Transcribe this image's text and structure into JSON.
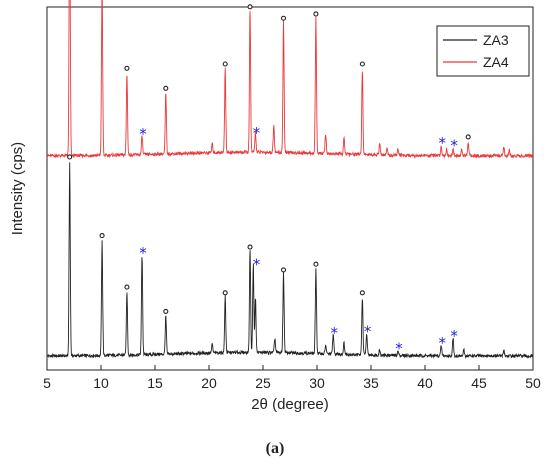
{
  "chart_data": {
    "type": "line",
    "xlabel": "2θ (degree)",
    "ylabel": "Intensity (cps)",
    "xlim": [
      5,
      50
    ],
    "xticks": [
      5,
      10,
      15,
      20,
      25,
      30,
      35,
      40,
      45,
      50
    ],
    "y_ticks_shown": false,
    "legend_position": "top-right",
    "series": [
      {
        "name": "ZA3",
        "color": "#222222",
        "baseline": 0,
        "peaks": [
          [
            7.1,
            135
          ],
          [
            10.1,
            80
          ],
          [
            12.4,
            44
          ],
          [
            13.8,
            70
          ],
          [
            16.0,
            27
          ],
          [
            20.3,
            6
          ],
          [
            21.5,
            40
          ],
          [
            23.8,
            72
          ],
          [
            24.1,
            62
          ],
          [
            24.3,
            38
          ],
          [
            26.1,
            10
          ],
          [
            26.9,
            56
          ],
          [
            29.9,
            60
          ],
          [
            30.8,
            6
          ],
          [
            31.5,
            14
          ],
          [
            32.5,
            8
          ],
          [
            34.2,
            40
          ],
          [
            34.6,
            15
          ],
          [
            35.8,
            4
          ],
          [
            37.5,
            3
          ],
          [
            41.5,
            7
          ],
          [
            42.6,
            12
          ],
          [
            43.6,
            4
          ],
          [
            47.3,
            4
          ]
        ]
      },
      {
        "name": "ZA4",
        "color": "#e83a3a",
        "baseline": 140,
        "peaks": [
          [
            7.1,
            185
          ],
          [
            10.1,
            120
          ],
          [
            12.4,
            57
          ],
          [
            13.8,
            13
          ],
          [
            16.0,
            43
          ],
          [
            20.3,
            6
          ],
          [
            21.5,
            60
          ],
          [
            23.8,
            100
          ],
          [
            24.3,
            14
          ],
          [
            26.0,
            20
          ],
          [
            26.9,
            92
          ],
          [
            29.9,
            95
          ],
          [
            30.8,
            14
          ],
          [
            32.5,
            12
          ],
          [
            34.2,
            60
          ],
          [
            35.8,
            8
          ],
          [
            36.5,
            5
          ],
          [
            37.5,
            4
          ],
          [
            41.5,
            7
          ],
          [
            42.0,
            5
          ],
          [
            42.6,
            5
          ],
          [
            43.4,
            4
          ],
          [
            44.0,
            9
          ],
          [
            47.3,
            6
          ],
          [
            47.8,
            4
          ]
        ]
      }
    ],
    "markers": [
      {
        "symbol": "°",
        "color": "#222222",
        "label": "circle marker (open dot)"
      },
      {
        "symbol": "*",
        "color": "#1f1fd8",
        "label": "asterisk marker"
      }
    ],
    "annotations_ZA4_circles": [
      7.1,
      10.1,
      12.4,
      16.0,
      21.5,
      23.8,
      26.9,
      29.9,
      34.2,
      44.0
    ],
    "annotations_ZA4_stars": [
      13.8,
      24.3,
      41.5,
      42.6
    ],
    "annotations_ZA3_circles": [
      7.1,
      10.1,
      12.4,
      16.0,
      21.5,
      23.8,
      26.9,
      29.9,
      34.2
    ],
    "annotations_ZA3_stars": [
      13.8,
      24.3,
      31.5,
      34.6,
      37.5,
      41.5,
      42.6
    ]
  },
  "caption": "(a)"
}
